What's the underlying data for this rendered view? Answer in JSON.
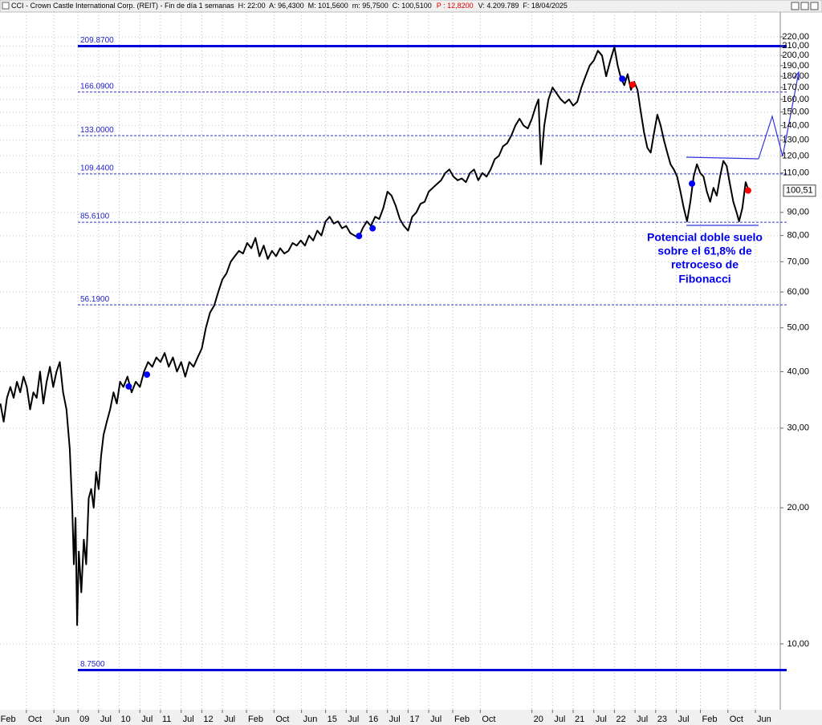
{
  "header": {
    "text": "CCI - Crown Castle International Corp. (REIT) - Fin de día 1 semanas  H: 22:00  A: 96,4300  M: 101,5600  m: 95,7500  C: 100,5100",
    "change": "P : 12,8200",
    "tail": "V: 4.209.789  F: 18/04/2025"
  },
  "chart_data": {
    "type": "line",
    "color": "#000000",
    "log_y": true,
    "grid": true,
    "xlim": [
      2007.11,
      2025.98
    ],
    "ylim": [
      7.15,
      246.6
    ],
    "xticks": [
      {
        "value": 2007.083,
        "label": "Feb"
      },
      {
        "value": 2007.75,
        "label": "Oct"
      },
      {
        "value": 2008.417,
        "label": "Jun"
      },
      {
        "value": 2009,
        "label": "09"
      },
      {
        "value": 2009.5,
        "label": "Jul"
      },
      {
        "value": 2010,
        "label": "10"
      },
      {
        "value": 2010.5,
        "label": "Jul"
      },
      {
        "value": 2011,
        "label": "11"
      },
      {
        "value": 2011.5,
        "label": "Jul"
      },
      {
        "value": 2012,
        "label": "12"
      },
      {
        "value": 2012.5,
        "label": "Jul"
      },
      {
        "value": 2013.083,
        "label": "Feb"
      },
      {
        "value": 2013.75,
        "label": "Oct"
      },
      {
        "value": 2014.417,
        "label": "Jun"
      },
      {
        "value": 2015,
        "label": "15"
      },
      {
        "value": 2015.5,
        "label": "Jul"
      },
      {
        "value": 2016,
        "label": "16"
      },
      {
        "value": 2016.5,
        "label": "Jul"
      },
      {
        "value": 2017,
        "label": "17"
      },
      {
        "value": 2017.5,
        "label": "Jul"
      },
      {
        "value": 2018.083,
        "label": "Feb"
      },
      {
        "value": 2018.75,
        "label": "Oct"
      },
      {
        "value": 2020,
        "label": "20"
      },
      {
        "value": 2020.5,
        "label": "Jul"
      },
      {
        "value": 2021,
        "label": "21"
      },
      {
        "value": 2021.5,
        "label": "Jul"
      },
      {
        "value": 2022,
        "label": "22"
      },
      {
        "value": 2022.5,
        "label": "Jul"
      },
      {
        "value": 2023,
        "label": "23"
      },
      {
        "value": 2023.5,
        "label": "Jul"
      },
      {
        "value": 2024.083,
        "label": "Feb"
      },
      {
        "value": 2024.75,
        "label": "Oct"
      },
      {
        "value": 2025.417,
        "label": "Jun"
      }
    ],
    "yticks": [
      {
        "value": 220,
        "label": "220,00"
      },
      {
        "value": 210,
        "label": "210,00"
      },
      {
        "value": 200,
        "label": "200,00"
      },
      {
        "value": 190,
        "label": "190,00"
      },
      {
        "value": 180,
        "label": "180,00"
      },
      {
        "value": 170,
        "label": "170,00"
      },
      {
        "value": 160,
        "label": "160,00"
      },
      {
        "value": 150,
        "label": "150,00"
      },
      {
        "value": 140,
        "label": "140,00"
      },
      {
        "value": 130,
        "label": "130,00"
      },
      {
        "value": 120,
        "label": "120,00"
      },
      {
        "value": 110,
        "label": "110,00"
      },
      {
        "value": 90,
        "label": "90,00"
      },
      {
        "value": 80,
        "label": "80,00"
      },
      {
        "value": 70,
        "label": "70,00"
      },
      {
        "value": 60,
        "label": "60,00"
      },
      {
        "value": 50,
        "label": "50,00"
      },
      {
        "value": 40,
        "label": "40,00"
      },
      {
        "value": 30,
        "label": "30,00"
      },
      {
        "value": 20,
        "label": "20,00"
      },
      {
        "value": 10,
        "label": "10,00"
      }
    ],
    "levels": [
      {
        "value": 209.87,
        "label": "209.8700",
        "style": "solid"
      },
      {
        "value": 166.09,
        "label": "166.0900",
        "style": "dashed"
      },
      {
        "value": 133,
        "label": "133.0000",
        "style": "dashed"
      },
      {
        "value": 109.44,
        "label": "109.4400",
        "style": "dashed"
      },
      {
        "value": 85.61,
        "label": "85.6100",
        "style": "dashed"
      },
      {
        "value": 56.19,
        "label": "56.1900",
        "style": "dashed"
      },
      {
        "value": 8.75,
        "label": "8.7500",
        "style": "solid"
      }
    ],
    "last_value": {
      "value": 100.51,
      "label": "100,51"
    },
    "markers": [
      {
        "x": 2010.23,
        "y": 37.1,
        "color": "#0000ff"
      },
      {
        "x": 2010.67,
        "y": 39.4,
        "color": "#0000ff"
      },
      {
        "x": 2015.81,
        "y": 79.8,
        "color": "#0000ff"
      },
      {
        "x": 2016.14,
        "y": 83,
        "color": "#0000ff"
      },
      {
        "x": 2022.19,
        "y": 177.7,
        "color": "#0000ff"
      },
      {
        "x": 2023.88,
        "y": 104.2,
        "color": "#0000ff"
      },
      {
        "x": 2022.44,
        "y": 172.5,
        "color": "#ff0000"
      },
      {
        "x": 2025.24,
        "y": 100.6,
        "color": "#ff0000"
      }
    ],
    "annotation": [
      "Potencial doble suelo",
      "sobre el 61,8% de",
      "retroceso de",
      "Fibonacci"
    ],
    "x": [
      2007.12,
      2007.2,
      2007.28,
      2007.36,
      2007.44,
      2007.52,
      2007.6,
      2007.68,
      2007.76,
      2007.84,
      2007.92,
      2008.0,
      2008.08,
      2008.16,
      2008.24,
      2008.32,
      2008.4,
      2008.48,
      2008.56,
      2008.64,
      2008.72,
      2008.8,
      2008.86,
      2008.9,
      2008.94,
      2008.98,
      2009.02,
      2009.08,
      2009.14,
      2009.2,
      2009.26,
      2009.32,
      2009.38,
      2009.44,
      2009.5,
      2009.56,
      2009.62,
      2009.7,
      2009.78,
      2009.86,
      2009.94,
      2010.02,
      2010.1,
      2010.2,
      2010.3,
      2010.4,
      2010.5,
      2010.6,
      2010.7,
      2010.8,
      2010.9,
      2011.0,
      2011.1,
      2011.2,
      2011.3,
      2011.4,
      2011.5,
      2011.6,
      2011.7,
      2011.8,
      2011.9,
      2012.0,
      2012.1,
      2012.2,
      2012.3,
      2012.4,
      2012.5,
      2012.6,
      2012.7,
      2012.8,
      2012.9,
      2013.0,
      2013.1,
      2013.2,
      2013.3,
      2013.4,
      2013.5,
      2013.6,
      2013.7,
      2013.8,
      2013.9,
      2014.0,
      2014.1,
      2014.2,
      2014.3,
      2014.4,
      2014.5,
      2014.6,
      2014.7,
      2014.8,
      2014.9,
      2015.0,
      2015.1,
      2015.2,
      2015.3,
      2015.4,
      2015.5,
      2015.6,
      2015.7,
      2015.8,
      2015.9,
      2016.0,
      2016.1,
      2016.2,
      2016.3,
      2016.4,
      2016.5,
      2016.6,
      2016.7,
      2016.8,
      2016.9,
      2017.0,
      2017.1,
      2017.2,
      2017.3,
      2017.4,
      2017.5,
      2017.6,
      2017.7,
      2017.8,
      2017.9,
      2018.0,
      2018.1,
      2018.2,
      2018.3,
      2018.4,
      2018.5,
      2018.6,
      2018.7,
      2018.8,
      2018.9,
      2019.0,
      2019.1,
      2019.2,
      2019.3,
      2019.4,
      2019.5,
      2019.6,
      2019.7,
      2019.8,
      2019.9,
      2020.0,
      2020.1,
      2020.16,
      2020.22,
      2020.3,
      2020.4,
      2020.5,
      2020.6,
      2020.7,
      2020.8,
      2020.9,
      2021.0,
      2021.1,
      2021.2,
      2021.3,
      2021.4,
      2021.5,
      2021.6,
      2021.7,
      2021.8,
      2021.9,
      2022.0,
      2022.08,
      2022.16,
      2022.24,
      2022.32,
      2022.4,
      2022.48,
      2022.56,
      2022.64,
      2022.72,
      2022.8,
      2022.88,
      2022.96,
      2023.04,
      2023.12,
      2023.2,
      2023.28,
      2023.36,
      2023.44,
      2023.52,
      2023.6,
      2023.68,
      2023.76,
      2023.84,
      2023.92,
      2024.0,
      2024.08,
      2024.16,
      2024.24,
      2024.32,
      2024.4,
      2024.48,
      2024.56,
      2024.64,
      2024.72,
      2024.8,
      2024.88,
      2024.96,
      2025.02,
      2025.1,
      2025.18,
      2025.26,
      2025.3
    ],
    "values": [
      34,
      31,
      35,
      37,
      35,
      38,
      36,
      39,
      37,
      33,
      36,
      35,
      40,
      34,
      38,
      41,
      37,
      40,
      42,
      36,
      33,
      27,
      20,
      15,
      19,
      11,
      16,
      13,
      17,
      15,
      21,
      22,
      20,
      24,
      22,
      26,
      29,
      31,
      33,
      36,
      34,
      38,
      37,
      39,
      36,
      38,
      37,
      40,
      42,
      41,
      43,
      42,
      44,
      41,
      43,
      40,
      42,
      39,
      42,
      41,
      43,
      45,
      50,
      54,
      56,
      60,
      64,
      66,
      70,
      72,
      74,
      73,
      77,
      75,
      79,
      72,
      76,
      71,
      74,
      72,
      75,
      73,
      74,
      77,
      76,
      78,
      76,
      80,
      78,
      82,
      80,
      86,
      88,
      85,
      86,
      83,
      84,
      81,
      80,
      79,
      83,
      86,
      84,
      88,
      87,
      92,
      100,
      98,
      93,
      87,
      84,
      82,
      88,
      90,
      94,
      95,
      100,
      102,
      104,
      106,
      110,
      112,
      108,
      106,
      107,
      105,
      110,
      112,
      106,
      110,
      108,
      112,
      118,
      120,
      126,
      128,
      133,
      140,
      145,
      140,
      138,
      145,
      155,
      160,
      115,
      140,
      160,
      170,
      165,
      160,
      157,
      160,
      155,
      158,
      170,
      180,
      190,
      195,
      205,
      200,
      180,
      195,
      209,
      190,
      178,
      172,
      182,
      168,
      175,
      168,
      150,
      135,
      125,
      122,
      135,
      148,
      140,
      130,
      122,
      115,
      112,
      108,
      100,
      92,
      86,
      95,
      108,
      115,
      110,
      108,
      100,
      95,
      102,
      98,
      108,
      117,
      114,
      104,
      95,
      90,
      86,
      92,
      105,
      100,
      100.51
    ]
  }
}
